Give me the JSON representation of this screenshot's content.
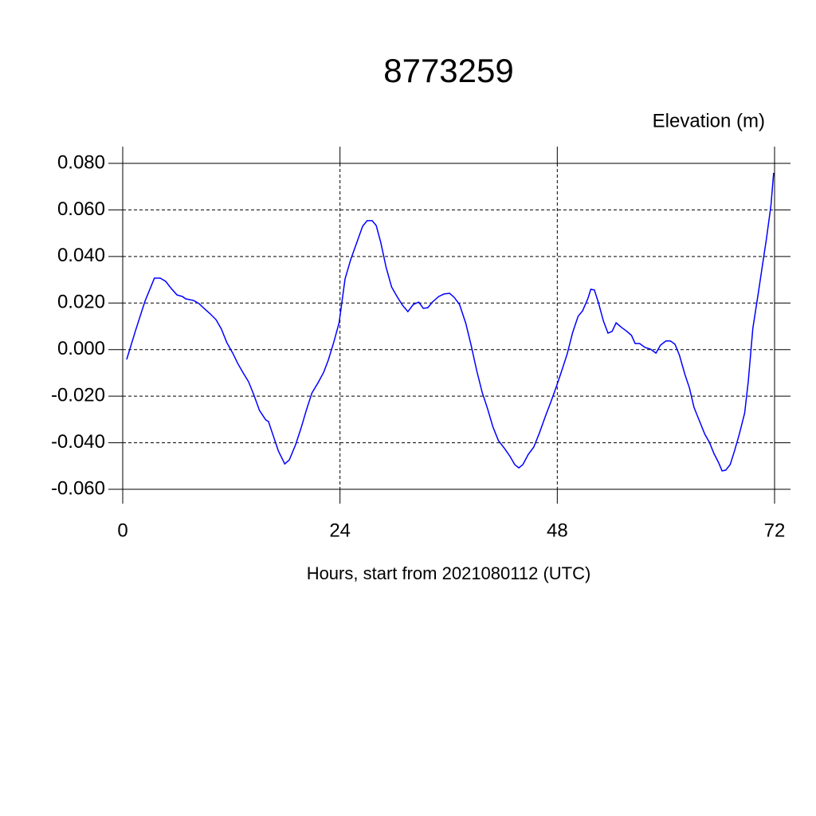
{
  "chart_data": {
    "type": "line",
    "title": "8773259",
    "ylabel": "Elevation (m)",
    "xlabel": "Hours, start from 2021080112 (UTC)",
    "color": "#0000ff",
    "grid": true,
    "xlim": [
      0,
      72
    ],
    "xticks": [
      0,
      24,
      48,
      72
    ],
    "ylim": [
      -0.06,
      0.08
    ],
    "yticks": [
      {
        "value": 0.08,
        "label": "0.080"
      },
      {
        "value": 0.06,
        "label": "0.060"
      },
      {
        "value": 0.04,
        "label": "0.040"
      },
      {
        "value": 0.02,
        "label": "0.020"
      },
      {
        "value": 0,
        "label": "0.000"
      },
      {
        "value": -0.02,
        "label": "-0.020"
      },
      {
        "value": -0.04,
        "label": "-0.040"
      },
      {
        "value": -0.06,
        "label": "-0.060"
      }
    ],
    "x": [
      0.44,
      1.41,
      2.46,
      3.5,
      4.14,
      4.75,
      5.37,
      5.99,
      6.6,
      6.95,
      7.83,
      8.45,
      8.98,
      9.6,
      10.3,
      10.9,
      11.5,
      12.15,
      12.7,
      13.3,
      13.9,
      14.5,
      15.1,
      15.8,
      16.1,
      16.6,
      17.2,
      17.9,
      18.4,
      19.1,
      19.7,
      20.3,
      20.9,
      21.6,
      22.2,
      22.7,
      23.3,
      23.9,
      24.56,
      25.2,
      25.8,
      26.5,
      27.0,
      27.55,
      28.0,
      28.5,
      29.1,
      29.7,
      30.3,
      30.9,
      31.5,
      32.1,
      32.7,
      33.2,
      33.7,
      34.2,
      34.9,
      35.5,
      36.1,
      36.6,
      37.2,
      37.9,
      38.5,
      39.1,
      39.7,
      40.3,
      40.9,
      41.5,
      42.2,
      42.8,
      43.3,
      43.75,
      44.2,
      44.8,
      45.4,
      46.0,
      46.7,
      47.3,
      47.9,
      48.5,
      49.1,
      49.7,
      50.3,
      50.8,
      51.4,
      51.7,
      52.1,
      52.55,
      53.1,
      53.6,
      54.05,
      54.5,
      55.1,
      55.6,
      56.2,
      56.6,
      57.1,
      57.7,
      58.3,
      58.9,
      59.4,
      60.0,
      60.5,
      61.0,
      61.5,
      62.1,
      62.6,
      63.1,
      63.7,
      64.3,
      64.8,
      65.3,
      65.8,
      66.2,
      66.6,
      67.1,
      67.6,
      68.1,
      68.7,
      69.1,
      69.6,
      70.2,
      70.7,
      71.1,
      71.6,
      71.9
    ],
    "values": [
      -0.0042,
      0.0081,
      0.0208,
      0.0307,
      0.0307,
      0.0293,
      0.0262,
      0.0235,
      0.0228,
      0.0218,
      0.0211,
      0.0197,
      0.0177,
      0.0156,
      0.0129,
      0.0088,
      0.003,
      -0.0015,
      -0.0059,
      -0.01,
      -0.0138,
      -0.0196,
      -0.0261,
      -0.0302,
      -0.0309,
      -0.0367,
      -0.0436,
      -0.0491,
      -0.0474,
      -0.0408,
      -0.0337,
      -0.0258,
      -0.0186,
      -0.0141,
      -0.0097,
      -0.0046,
      0.003,
      0.0115,
      0.0304,
      0.0389,
      0.0454,
      0.053,
      0.0554,
      0.0554,
      0.0533,
      0.0461,
      0.0352,
      0.0269,
      0.0228,
      0.0191,
      0.0163,
      0.0194,
      0.0204,
      0.0177,
      0.018,
      0.0204,
      0.0228,
      0.0239,
      0.0242,
      0.0225,
      0.0194,
      0.0112,
      0.0016,
      -0.009,
      -0.0183,
      -0.0254,
      -0.0333,
      -0.0391,
      -0.0426,
      -0.046,
      -0.0494,
      -0.0508,
      -0.0494,
      -0.045,
      -0.0419,
      -0.0361,
      -0.0285,
      -0.0224,
      -0.0159,
      -0.009,
      -0.0018,
      0.0074,
      0.0143,
      0.0167,
      0.0221,
      0.0259,
      0.0256,
      0.0201,
      0.0122,
      0.0071,
      0.0078,
      0.0115,
      0.0095,
      0.0081,
      0.0061,
      0.0026,
      0.0026,
      0.0009,
      0.0002,
      -0.0015,
      0.0019,
      0.0037,
      0.0037,
      0.0023,
      -0.0025,
      -0.0107,
      -0.0165,
      -0.0248,
      -0.0306,
      -0.0364,
      -0.0398,
      -0.0446,
      -0.0484,
      -0.0521,
      -0.0518,
      -0.0494,
      -0.0432,
      -0.0364,
      -0.0272,
      -0.0135,
      0.0091,
      0.0242,
      0.0372,
      0.0475,
      0.0619,
      0.0759
    ]
  }
}
